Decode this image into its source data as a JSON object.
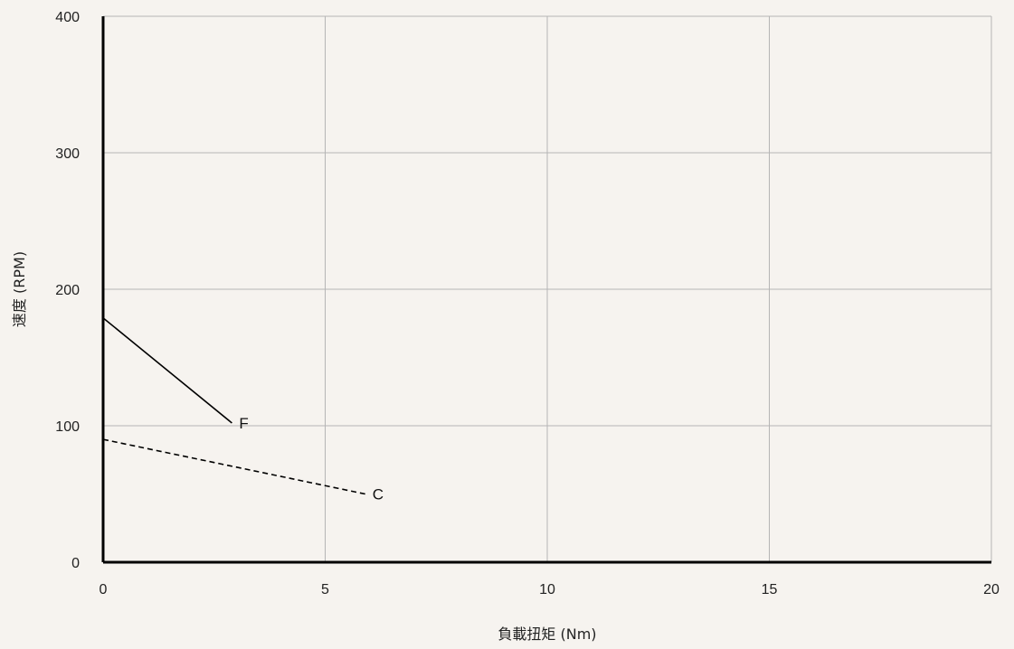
{
  "chart_data": {
    "type": "line",
    "title": "",
    "xlabel": "負載扭矩 (Nm)",
    "ylabel": "速度 (RPM)",
    "xlim": [
      0,
      20
    ],
    "ylim": [
      0,
      400
    ],
    "xticks": [
      0,
      5,
      10,
      15,
      20
    ],
    "yticks": [
      0,
      100,
      200,
      300,
      400
    ],
    "grid": true,
    "background": "#f6f3ef",
    "grid_color": "#b5b5b5",
    "axis_color": "#000000",
    "series": [
      {
        "name": "F",
        "style": "solid",
        "color": "#000000",
        "points": [
          [
            0,
            179
          ],
          [
            2.9,
            102
          ]
        ]
      },
      {
        "name": "C",
        "style": "dashed",
        "color": "#000000",
        "points": [
          [
            0,
            90
          ],
          [
            5.9,
            50
          ]
        ]
      }
    ]
  }
}
